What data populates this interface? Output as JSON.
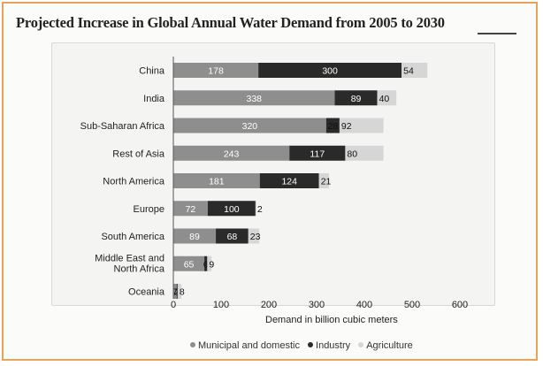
{
  "chart_data": {
    "type": "bar",
    "orientation": "horizontal",
    "stacked": true,
    "title": "Projected Increase in Global Annual Water Demand from 2005 to 2030",
    "xlabel": "Demand in billion cubic meters",
    "ylabel": "",
    "xlim": [
      0,
      600
    ],
    "xticks": [
      "0",
      "100",
      "200",
      "300",
      "400",
      "500",
      "600"
    ],
    "categories": [
      "China",
      "India",
      "Sub-Saharan Africa",
      "Rest of Asia",
      "North America",
      "Europe",
      "South America",
      "Middle East and North Africa",
      "Oceania"
    ],
    "series": [
      {
        "name": "Municipal and domestic",
        "color": "#8e8e8e",
        "values": [
          178,
          338,
          320,
          243,
          181,
          72,
          89,
          65,
          7
        ]
      },
      {
        "name": "Industry",
        "color": "#2a2a2a",
        "values": [
          300,
          89,
          28,
          117,
          124,
          100,
          68,
          6,
          2
        ]
      },
      {
        "name": "Agriculture",
        "color": "#d6d6d6",
        "values": [
          54,
          40,
          92,
          80,
          21,
          2,
          23,
          9,
          8
        ]
      }
    ],
    "data_labels": [
      [
        "178",
        "300",
        "54"
      ],
      [
        "338",
        "89",
        "40"
      ],
      [
        "320",
        "28",
        "92"
      ],
      [
        "243",
        "117",
        "80"
      ],
      [
        "181",
        "124",
        "21"
      ],
      [
        "72",
        "100",
        "2"
      ],
      [
        "89",
        "68",
        "23"
      ],
      [
        "65",
        "6",
        "9"
      ],
      [
        "7",
        "2",
        "8"
      ]
    ],
    "legend_position": "bottom",
    "grid": false
  }
}
